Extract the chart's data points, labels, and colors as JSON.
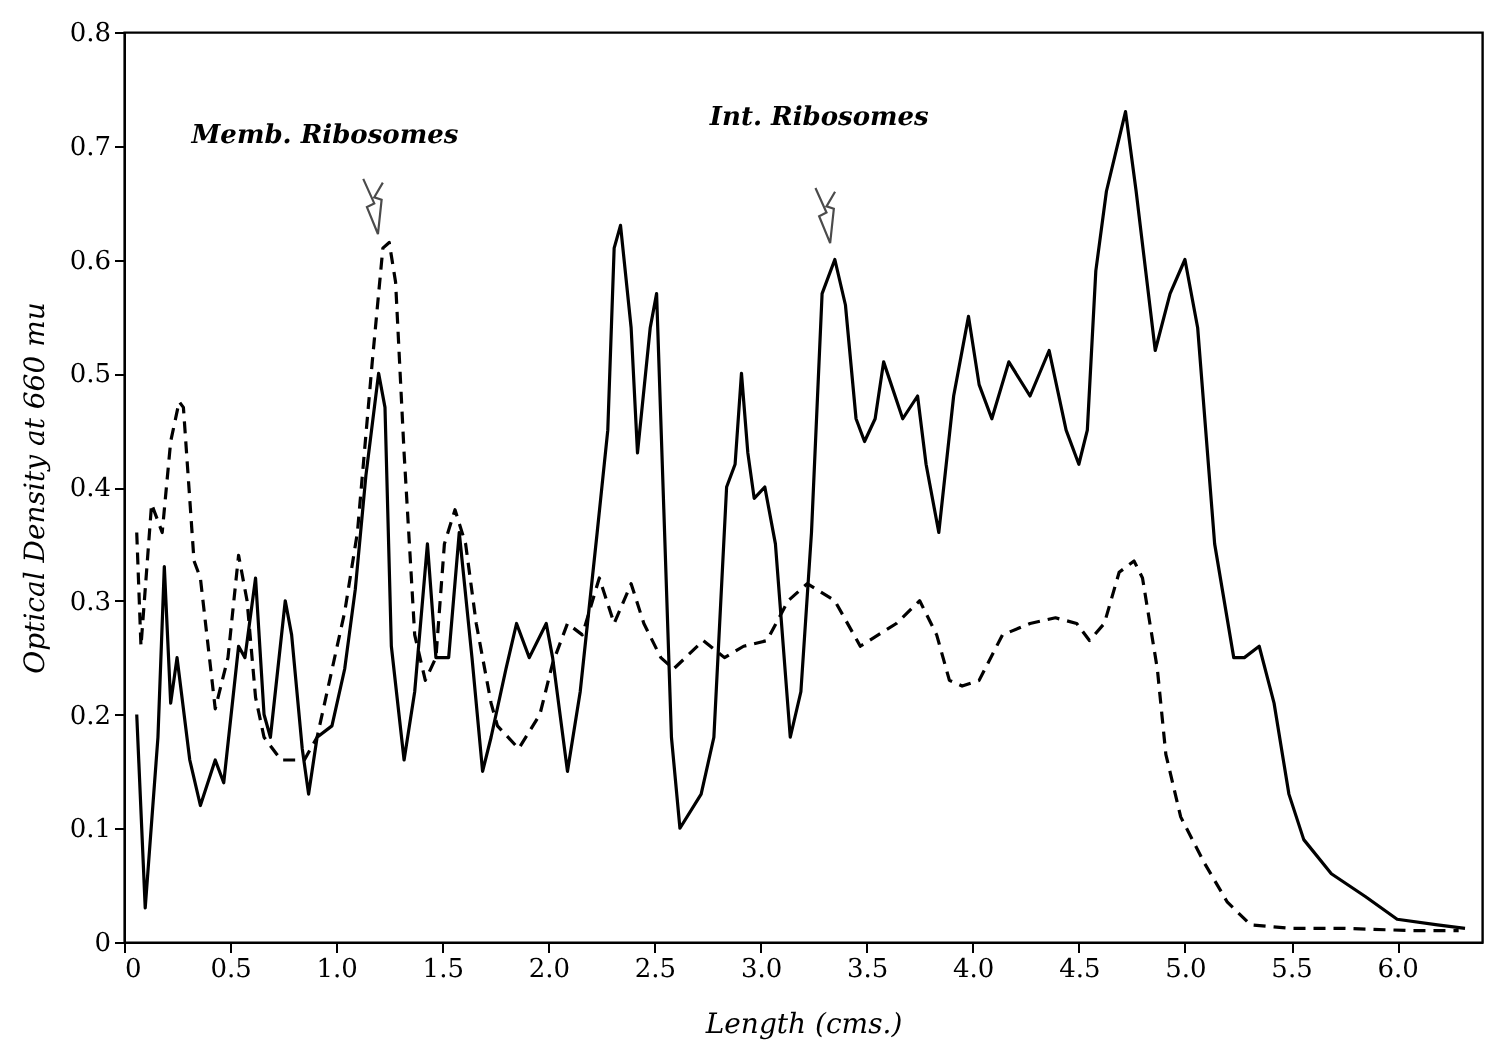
{
  "chart_data": {
    "type": "line",
    "xlabel": "Length (cms.)",
    "ylabel": "Optical Density at 660 mu",
    "xlim": [
      0,
      6.4
    ],
    "ylim": [
      0,
      0.8
    ],
    "xticks": [
      0,
      {
        "value": 0.5,
        "label": "0.5"
      },
      {
        "value": 1,
        "label": "1.0"
      },
      1.5,
      {
        "value": 2,
        "label": "2.0"
      },
      2.5,
      {
        "value": 3,
        "label": "3.0"
      },
      3.5,
      {
        "value": 4,
        "label": "4.0"
      },
      4.5,
      {
        "value": 5,
        "label": "5.0"
      },
      5.5,
      {
        "value": 6,
        "label": "6.0"
      }
    ],
    "yticks": [
      0,
      0.1,
      0.2,
      0.3,
      0.4,
      0.5,
      0.6,
      0.7,
      0.8
    ],
    "grid": false,
    "marker": "none",
    "series": [
      {
        "color": "#000000",
        "line_style": "solid",
        "x": [
          0.06,
          0.1,
          0.16,
          0.19,
          0.22,
          0.25,
          0.31,
          0.36,
          0.43,
          0.47,
          0.54,
          0.57,
          0.62,
          0.66,
          0.69,
          0.76,
          0.79,
          0.84,
          0.87,
          0.91,
          0.98,
          1.04,
          1.09,
          1.14,
          1.2,
          1.23,
          1.26,
          1.32,
          1.37,
          1.43,
          1.47,
          1.53,
          1.58,
          1.64,
          1.69,
          1.73,
          1.8,
          1.85,
          1.91,
          1.99,
          2.02,
          2.09,
          2.15,
          2.23,
          2.28,
          2.31,
          2.34,
          2.39,
          2.42,
          2.48,
          2.51,
          2.58,
          2.62,
          2.72,
          2.78,
          2.84,
          2.88,
          2.91,
          2.94,
          2.97,
          3.02,
          3.07,
          3.14,
          3.19,
          3.24,
          3.29,
          3.35,
          3.4,
          3.45,
          3.49,
          3.54,
          3.58,
          3.67,
          3.74,
          3.78,
          3.84,
          3.91,
          3.98,
          4.03,
          4.09,
          4.17,
          4.27,
          4.36,
          4.44,
          4.5,
          4.54,
          4.58,
          4.63,
          4.72,
          4.77,
          4.86,
          4.93,
          5.0,
          5.06,
          5.14,
          5.23,
          5.28,
          5.35,
          5.42,
          5.49,
          5.56,
          5.69,
          5.85,
          6.0,
          6.19,
          6.32
        ],
        "values": [
          0.2,
          0.03,
          0.18,
          0.33,
          0.21,
          0.25,
          0.16,
          0.12,
          0.16,
          0.14,
          0.26,
          0.25,
          0.32,
          0.2,
          0.18,
          0.3,
          0.27,
          0.17,
          0.13,
          0.18,
          0.19,
          0.24,
          0.31,
          0.41,
          0.5,
          0.47,
          0.26,
          0.16,
          0.22,
          0.35,
          0.25,
          0.25,
          0.36,
          0.25,
          0.15,
          0.18,
          0.24,
          0.28,
          0.25,
          0.28,
          0.25,
          0.15,
          0.22,
          0.36,
          0.45,
          0.61,
          0.63,
          0.54,
          0.43,
          0.54,
          0.57,
          0.18,
          0.1,
          0.13,
          0.18,
          0.4,
          0.42,
          0.5,
          0.43,
          0.39,
          0.4,
          0.35,
          0.18,
          0.22,
          0.36,
          0.57,
          0.6,
          0.56,
          0.46,
          0.44,
          0.46,
          0.51,
          0.46,
          0.48,
          0.42,
          0.36,
          0.48,
          0.55,
          0.49,
          0.46,
          0.51,
          0.48,
          0.52,
          0.45,
          0.42,
          0.45,
          0.59,
          0.66,
          0.73,
          0.66,
          0.52,
          0.57,
          0.6,
          0.54,
          0.35,
          0.25,
          0.25,
          0.26,
          0.21,
          0.13,
          0.09,
          0.06,
          0.04,
          0.02,
          0.015,
          0.012
        ]
      },
      {
        "color": "#000000",
        "line_style": "dashed",
        "x": [
          0.06,
          0.08,
          0.13,
          0.16,
          0.18,
          0.22,
          0.26,
          0.28,
          0.33,
          0.36,
          0.43,
          0.49,
          0.54,
          0.58,
          0.62,
          0.66,
          0.74,
          0.85,
          0.91,
          1.04,
          1.1,
          1.17,
          1.22,
          1.25,
          1.28,
          1.32,
          1.37,
          1.42,
          1.47,
          1.51,
          1.56,
          1.61,
          1.66,
          1.73,
          1.76,
          1.86,
          1.96,
          2.02,
          2.09,
          2.16,
          2.24,
          2.31,
          2.39,
          2.45,
          2.53,
          2.59,
          2.73,
          2.83,
          2.92,
          3.03,
          3.13,
          3.22,
          3.35,
          3.47,
          3.64,
          3.75,
          3.83,
          3.89,
          3.95,
          4.03,
          4.14,
          4.27,
          4.39,
          4.49,
          4.55,
          4.62,
          4.69,
          4.76,
          4.8,
          4.87,
          4.91,
          4.98,
          5.09,
          5.2,
          5.31,
          5.5,
          5.75,
          6.07,
          6.29
        ],
        "values": [
          0.36,
          0.26,
          0.385,
          0.37,
          0.36,
          0.44,
          0.475,
          0.47,
          0.335,
          0.32,
          0.205,
          0.25,
          0.34,
          0.3,
          0.215,
          0.18,
          0.16,
          0.16,
          0.18,
          0.29,
          0.36,
          0.51,
          0.61,
          0.615,
          0.58,
          0.43,
          0.27,
          0.23,
          0.25,
          0.35,
          0.38,
          0.35,
          0.28,
          0.21,
          0.19,
          0.17,
          0.2,
          0.245,
          0.28,
          0.27,
          0.32,
          0.28,
          0.315,
          0.28,
          0.25,
          0.24,
          0.265,
          0.25,
          0.26,
          0.265,
          0.3,
          0.315,
          0.3,
          0.26,
          0.28,
          0.3,
          0.27,
          0.23,
          0.225,
          0.23,
          0.27,
          0.28,
          0.285,
          0.28,
          0.265,
          0.28,
          0.325,
          0.335,
          0.32,
          0.24,
          0.165,
          0.11,
          0.07,
          0.035,
          0.015,
          0.012,
          0.012,
          0.01,
          0.01
        ]
      }
    ],
    "annotations": [
      "Memb. Ribosomes",
      "Int. Ribosomes"
    ]
  }
}
